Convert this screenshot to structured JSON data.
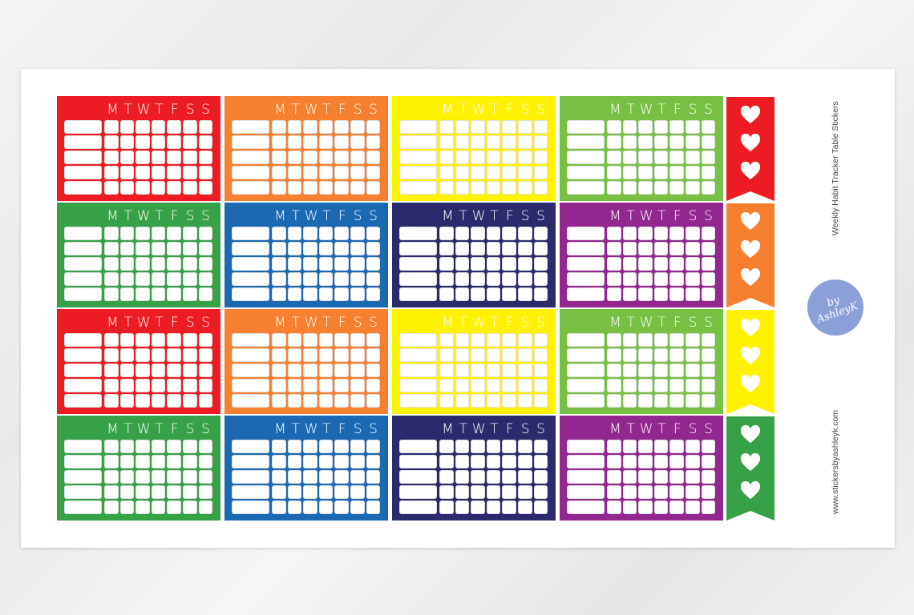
{
  "product": {
    "title": "Weekly Habit Tracker Table Stickers",
    "website": "www.stickersbyashleyk.com",
    "logo_text": "by AshleyK"
  },
  "days": [
    "M",
    "T",
    "W",
    "T",
    "F",
    "S",
    "S"
  ],
  "rows_per_table": 5,
  "palette": {
    "red": "#ed1c24",
    "orange": "#f6802f",
    "yellow": "#fff200",
    "lime": "#78c043",
    "green": "#37a148",
    "blue": "#1b68b3",
    "navy": "#2a2a6c",
    "purple": "#92278f"
  },
  "sticker_grid": [
    [
      "red",
      "orange",
      "yellow",
      "lime"
    ],
    [
      "green",
      "blue",
      "navy",
      "purple"
    ],
    [
      "red",
      "orange",
      "yellow",
      "lime"
    ],
    [
      "green",
      "blue",
      "navy",
      "purple"
    ]
  ],
  "flags": [
    {
      "color": "red",
      "icon": "heart-icon",
      "count": 3
    },
    {
      "color": "orange",
      "icon": "heart-icon",
      "count": 3
    },
    {
      "color": "yellow",
      "icon": "heart-icon",
      "count": 3
    },
    {
      "color": "green",
      "icon": "heart-icon",
      "count": 3
    }
  ]
}
